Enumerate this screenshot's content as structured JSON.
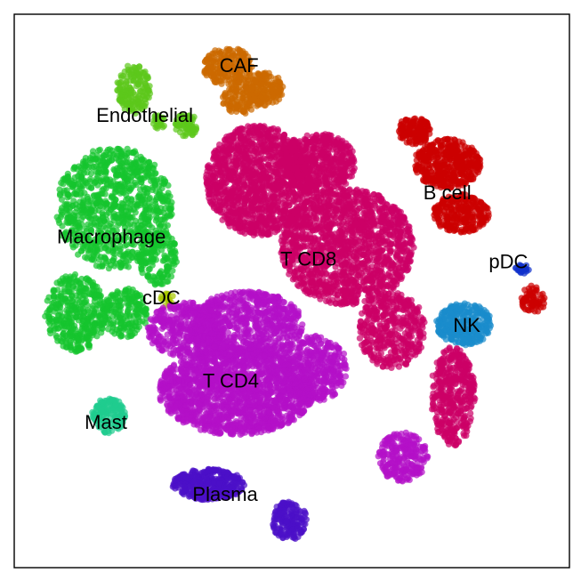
{
  "chart_data": {
    "type": "scatter",
    "title": "",
    "xlabel": "",
    "ylabel": "",
    "grid": false,
    "legend": "none",
    "xlim": [
      0,
      100
    ],
    "ylim": [
      0,
      100
    ],
    "clusters": [
      {
        "name": "CAF",
        "color": "#cc6a00",
        "label_xy": [
          40.5,
          90.5
        ],
        "blobs": [
          [
            38.5,
            90.5,
            4.5,
            3.5,
            220
          ],
          [
            45,
            86.5,
            3.5,
            3.0,
            160
          ],
          [
            41,
            84.5,
            3.5,
            2.5,
            120
          ]
        ]
      },
      {
        "name": "Endothelial",
        "color": "#5cc81b",
        "label_xy": [
          23.5,
          81.5
        ],
        "blobs": [
          [
            21.5,
            86.5,
            3.0,
            4.5,
            170
          ],
          [
            31,
            80,
            2.0,
            2.2,
            70
          ],
          [
            26,
            80.5,
            1.4,
            1.4,
            30
          ]
        ]
      },
      {
        "name": "Macrophage",
        "color": "#16c52e",
        "label_xy": [
          17.5,
          59.5
        ],
        "blobs": [
          [
            18,
            65,
            10.5,
            11,
            900
          ],
          [
            11,
            46,
            5.5,
            7,
            380
          ],
          [
            20,
            46,
            4,
            4.5,
            180
          ],
          [
            26,
            56,
            3.5,
            5,
            160
          ]
        ]
      },
      {
        "name": "cDC",
        "color": "#a8c800",
        "label_xy": [
          26.5,
          48.5
        ],
        "blobs": [
          [
            27.5,
            48.5,
            1.2,
            1.2,
            18
          ]
        ]
      },
      {
        "name": "Mast",
        "color": "#1fcc8e",
        "label_xy": [
          16.5,
          26
        ],
        "blobs": [
          [
            17,
            27.5,
            3.0,
            3.2,
            150
          ]
        ]
      },
      {
        "name": "B cell",
        "color": "#cc0000",
        "label_xy": [
          78,
          67.5
        ],
        "blobs": [
          [
            78,
            73,
            6,
            4.5,
            450
          ],
          [
            80.5,
            64,
            5,
            3.5,
            260
          ],
          [
            93.5,
            48.5,
            2.2,
            2.5,
            70
          ],
          [
            72,
            79,
            3,
            2.5,
            140
          ]
        ]
      },
      {
        "name": "pDC",
        "color": "#1030cc",
        "label_xy": [
          89,
          55
        ],
        "blobs": [
          [
            91.5,
            54,
            1.3,
            0.9,
            25
          ]
        ]
      },
      {
        "name": "NK",
        "color": "#1a8ccc",
        "label_xy": [
          81.5,
          43.5
        ],
        "blobs": [
          [
            81,
            44,
            5,
            3.8,
            320
          ]
        ]
      },
      {
        "name": "T CD8",
        "color": "#cc0066",
        "label_xy": [
          53,
          55.5
        ],
        "blobs": [
          [
            44,
            70,
            9.5,
            10,
            1300
          ],
          [
            60,
            58,
            12,
            10.5,
            1500
          ],
          [
            68,
            43,
            6,
            7,
            420
          ],
          [
            79,
            31,
            4,
            9,
            420
          ],
          [
            55,
            73,
            6.5,
            5.5,
            500
          ]
        ]
      },
      {
        "name": "T CD4",
        "color": "#b310c8",
        "label_xy": [
          39,
          33.5
        ],
        "blobs": [
          [
            40,
            32,
            14,
            8,
            1700
          ],
          [
            42,
            44,
            10,
            6,
            700
          ],
          [
            31,
            43,
            7,
            5,
            400
          ],
          [
            54,
            36,
            6,
            6,
            400
          ],
          [
            70,
            20,
            4.5,
            4.5,
            240
          ]
        ]
      },
      {
        "name": "Plasma",
        "color": "#4b10c8",
        "label_xy": [
          38,
          13
        ],
        "blobs": [
          [
            35,
            15,
            6.5,
            2.8,
            380
          ],
          [
            49.5,
            8.5,
            3.2,
            3.5,
            170
          ]
        ]
      }
    ]
  }
}
